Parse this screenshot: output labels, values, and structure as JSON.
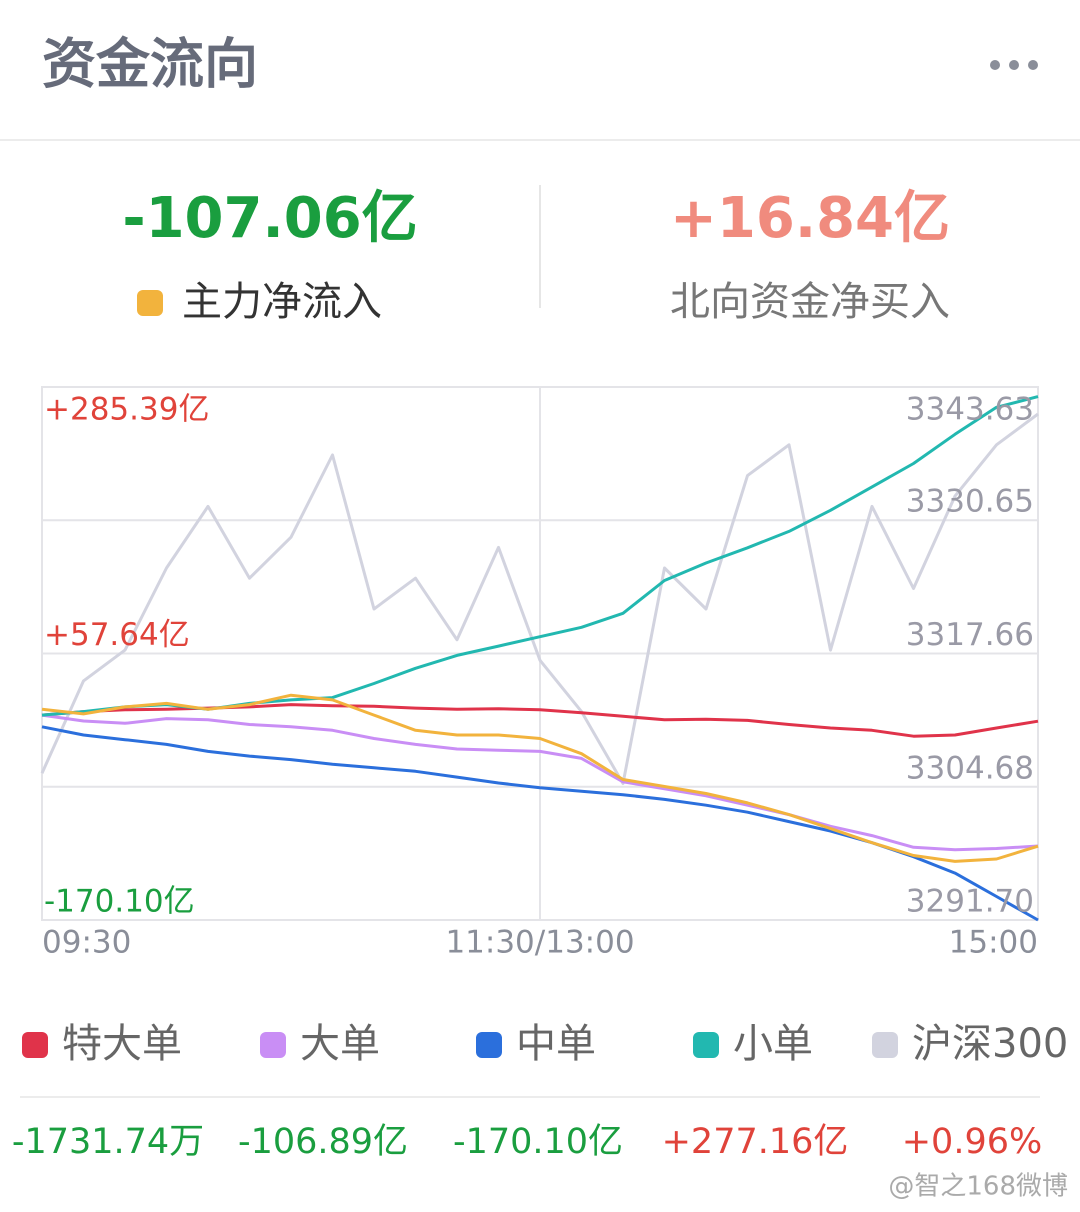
{
  "header": {
    "title": "资金流向"
  },
  "summary": {
    "main_value": "-107.06亿",
    "north_value": "+16.84亿",
    "north_label": "北向资金净买入"
  },
  "watermark": "@智之168微博",
  "chart_data": {
    "type": "line",
    "x": [
      "09:30",
      null,
      null,
      null,
      null,
      null,
      null,
      null,
      null,
      null,
      null,
      null,
      "11:30/13:00",
      null,
      null,
      null,
      null,
      null,
      null,
      null,
      null,
      null,
      null,
      null,
      "15:00"
    ],
    "ylim": [
      -170.1,
      285.39
    ],
    "yticks": [
      {
        "value": 285.39,
        "label": "+285.39亿"
      },
      {
        "value": 57.64,
        "label": "+57.64亿"
      },
      {
        "value": -170.1,
        "label": "-170.10亿"
      }
    ],
    "y2lim": [
      3291.7,
      3343.63
    ],
    "y2ticks": [
      3343.63,
      3330.65,
      3317.66,
      3304.68,
      {
        "value": 3291.7,
        "label": "3291.70"
      }
    ],
    "grid": true,
    "series": [
      {
        "name": "特大单",
        "color": "#e0334a",
        "latest": "-1731.74万",
        "values": [
          5.0,
          8,
          9.5,
          10,
          11,
          12,
          14,
          13,
          12.5,
          11,
          10,
          10.5,
          9.5,
          7,
          4,
          1,
          1.5,
          0.5,
          -3,
          -6,
          -8,
          -13,
          -12,
          -6,
          -0.17
        ]
      },
      {
        "name": "大单",
        "color": "#c98ef5",
        "latest": "-106.89亿",
        "values": [
          5,
          0,
          -2,
          2,
          1,
          -3,
          -5,
          -8,
          -15,
          -20,
          -24,
          -25,
          -26,
          -32,
          -52,
          -58,
          -64,
          -72,
          -80,
          -90,
          -98,
          -108,
          -110,
          -109,
          -106.89
        ]
      },
      {
        "name": "中单",
        "color": "#2b6fdc",
        "latest": "-170.10亿",
        "values": [
          -5,
          -12,
          -16,
          -20,
          -26,
          -30,
          -33,
          -37,
          -40,
          -43,
          -48,
          -53,
          -57,
          -60,
          -63,
          -67,
          -72,
          -78,
          -86,
          -94,
          -104,
          -116,
          -130,
          -150,
          -170.1
        ]
      },
      {
        "name": "小单",
        "color": "#22b8b0",
        "latest": "+277.16亿",
        "values": [
          5,
          8,
          12,
          14,
          10,
          15,
          18,
          20,
          32,
          45,
          56,
          64,
          72,
          80,
          92,
          120,
          135,
          148,
          162,
          180,
          200,
          220,
          245,
          268,
          277.16
        ]
      },
      {
        "name": "沪深300",
        "color": "#d2d3df",
        "latest": "+0.96%",
        "axis": "y2",
        "values": [
          3306,
          3315,
          3318,
          3326,
          3332,
          3325,
          3329,
          3337,
          3322,
          3325,
          3319,
          3328,
          3317,
          3312,
          3305,
          3326,
          3322,
          3335,
          3338,
          3318,
          3332,
          3324,
          3333,
          3338,
          3341
        ]
      },
      {
        "name": "主力净流入",
        "color": "#f2b33d",
        "values": [
          10,
          6,
          12,
          15,
          10,
          14,
          22,
          18,
          5,
          -8,
          -12,
          -12,
          -15,
          -28,
          -50,
          -56,
          -62,
          -70,
          -80,
          -92,
          -104,
          -115,
          -120,
          -118,
          -107.06
        ]
      }
    ]
  }
}
